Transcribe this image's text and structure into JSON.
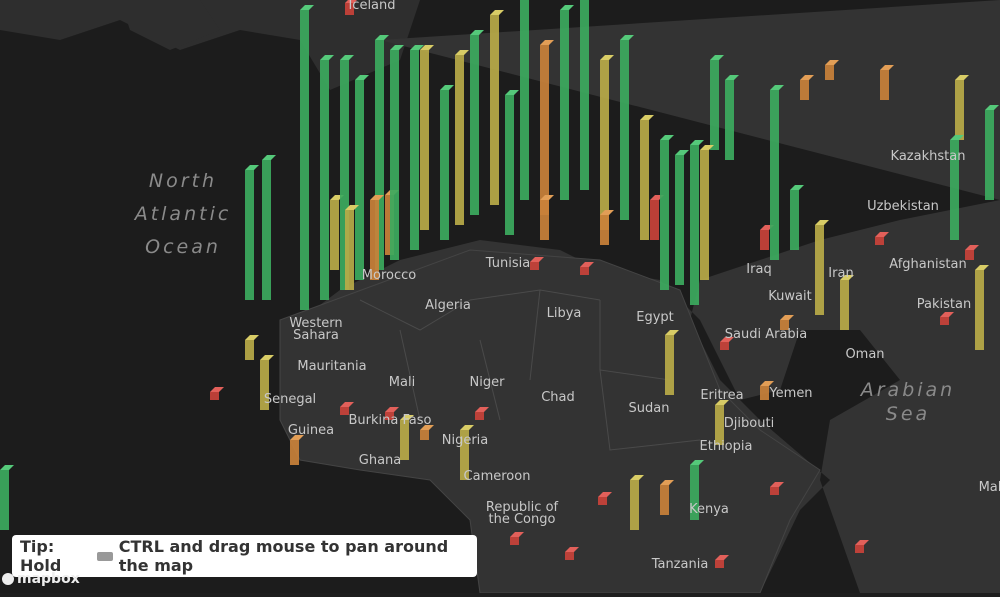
{
  "map": {
    "oceans": [
      {
        "lines": [
          "North",
          "Atlantic",
          "Ocean"
        ]
      },
      {
        "lines": [
          "Arabian",
          "Sea"
        ]
      }
    ],
    "labels": [
      {
        "lines": [
          "Iceland"
        ]
      },
      {
        "lines": [
          "Morocco"
        ]
      },
      {
        "lines": [
          "Tunisia"
        ]
      },
      {
        "lines": [
          "Algeria"
        ]
      },
      {
        "lines": [
          "Libya"
        ]
      },
      {
        "lines": [
          "Egypt"
        ]
      },
      {
        "lines": [
          "Western",
          "Sahara"
        ]
      },
      {
        "lines": [
          "Mauritania"
        ]
      },
      {
        "lines": [
          "Mali"
        ]
      },
      {
        "lines": [
          "Niger"
        ]
      },
      {
        "lines": [
          "Chad"
        ]
      },
      {
        "lines": [
          "Sudan"
        ]
      },
      {
        "lines": [
          "Senegal"
        ]
      },
      {
        "lines": [
          "Guinea"
        ]
      },
      {
        "lines": [
          "Burkina Faso"
        ]
      },
      {
        "lines": [
          "Ghana"
        ]
      },
      {
        "lines": [
          "Nigeria"
        ]
      },
      {
        "lines": [
          "Cameroon"
        ]
      },
      {
        "lines": [
          "Republic of",
          "the Congo"
        ]
      },
      {
        "lines": [
          "Ethiopia"
        ]
      },
      {
        "lines": [
          "Djibouti"
        ]
      },
      {
        "lines": [
          "Eritrea"
        ]
      },
      {
        "lines": [
          "Kenya"
        ]
      },
      {
        "lines": [
          "Tanzania"
        ]
      },
      {
        "lines": [
          "Saudi Arabia"
        ]
      },
      {
        "lines": [
          "Yemen"
        ]
      },
      {
        "lines": [
          "Oman"
        ]
      },
      {
        "lines": [
          "Iraq"
        ]
      },
      {
        "lines": [
          "Iran"
        ]
      },
      {
        "lines": [
          "Kuwait"
        ]
      },
      {
        "lines": [
          "Afghanistan"
        ]
      },
      {
        "lines": [
          "Pakistan"
        ]
      },
      {
        "lines": [
          "Kazakhstan"
        ]
      },
      {
        "lines": [
          "Uzbekistan"
        ]
      },
      {
        "lines": [
          "Mal"
        ]
      }
    ],
    "tip": {
      "before": "Tip: Hold",
      "after": "CTRL and drag mouse to pan around the map"
    },
    "logo": "mapbox"
  }
}
